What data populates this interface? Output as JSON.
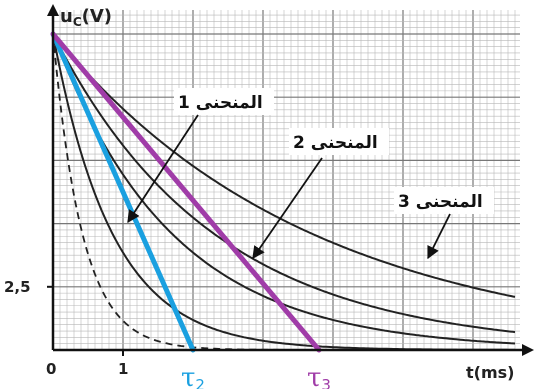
{
  "chart_data": {
    "type": "line",
    "ylabel": "u",
    "ylabel_sub": "C",
    "ylabel_unit": "(V)",
    "xlabel": "t(ms)",
    "x_tick_labels": [
      "0",
      "1"
    ],
    "y_tick_labels": [
      "2,5"
    ],
    "xlim": [
      0,
      6.6
    ],
    "ylim": [
      0,
      12.5
    ],
    "grid": true,
    "u0": 12.5,
    "dashed_tau": 0.42,
    "series": [
      {
        "name": "المنحنى 1",
        "tau": 0.85,
        "role": "labeled"
      },
      {
        "name": "المنحنى 2",
        "tau": 1.7,
        "role": "labeled"
      },
      {
        "name": "المنحنى 3",
        "tau": 3.7,
        "role": "labeled"
      },
      {
        "tau": 2.3,
        "role": "unlabeled"
      }
    ],
    "tangents": [
      {
        "label": "τ",
        "sub": "2",
        "x_end": 2.0,
        "color": "#1aa0e0"
      },
      {
        "label": "τ",
        "sub": "3",
        "x_end": 3.8,
        "color": "#a03ca8"
      }
    ]
  }
}
